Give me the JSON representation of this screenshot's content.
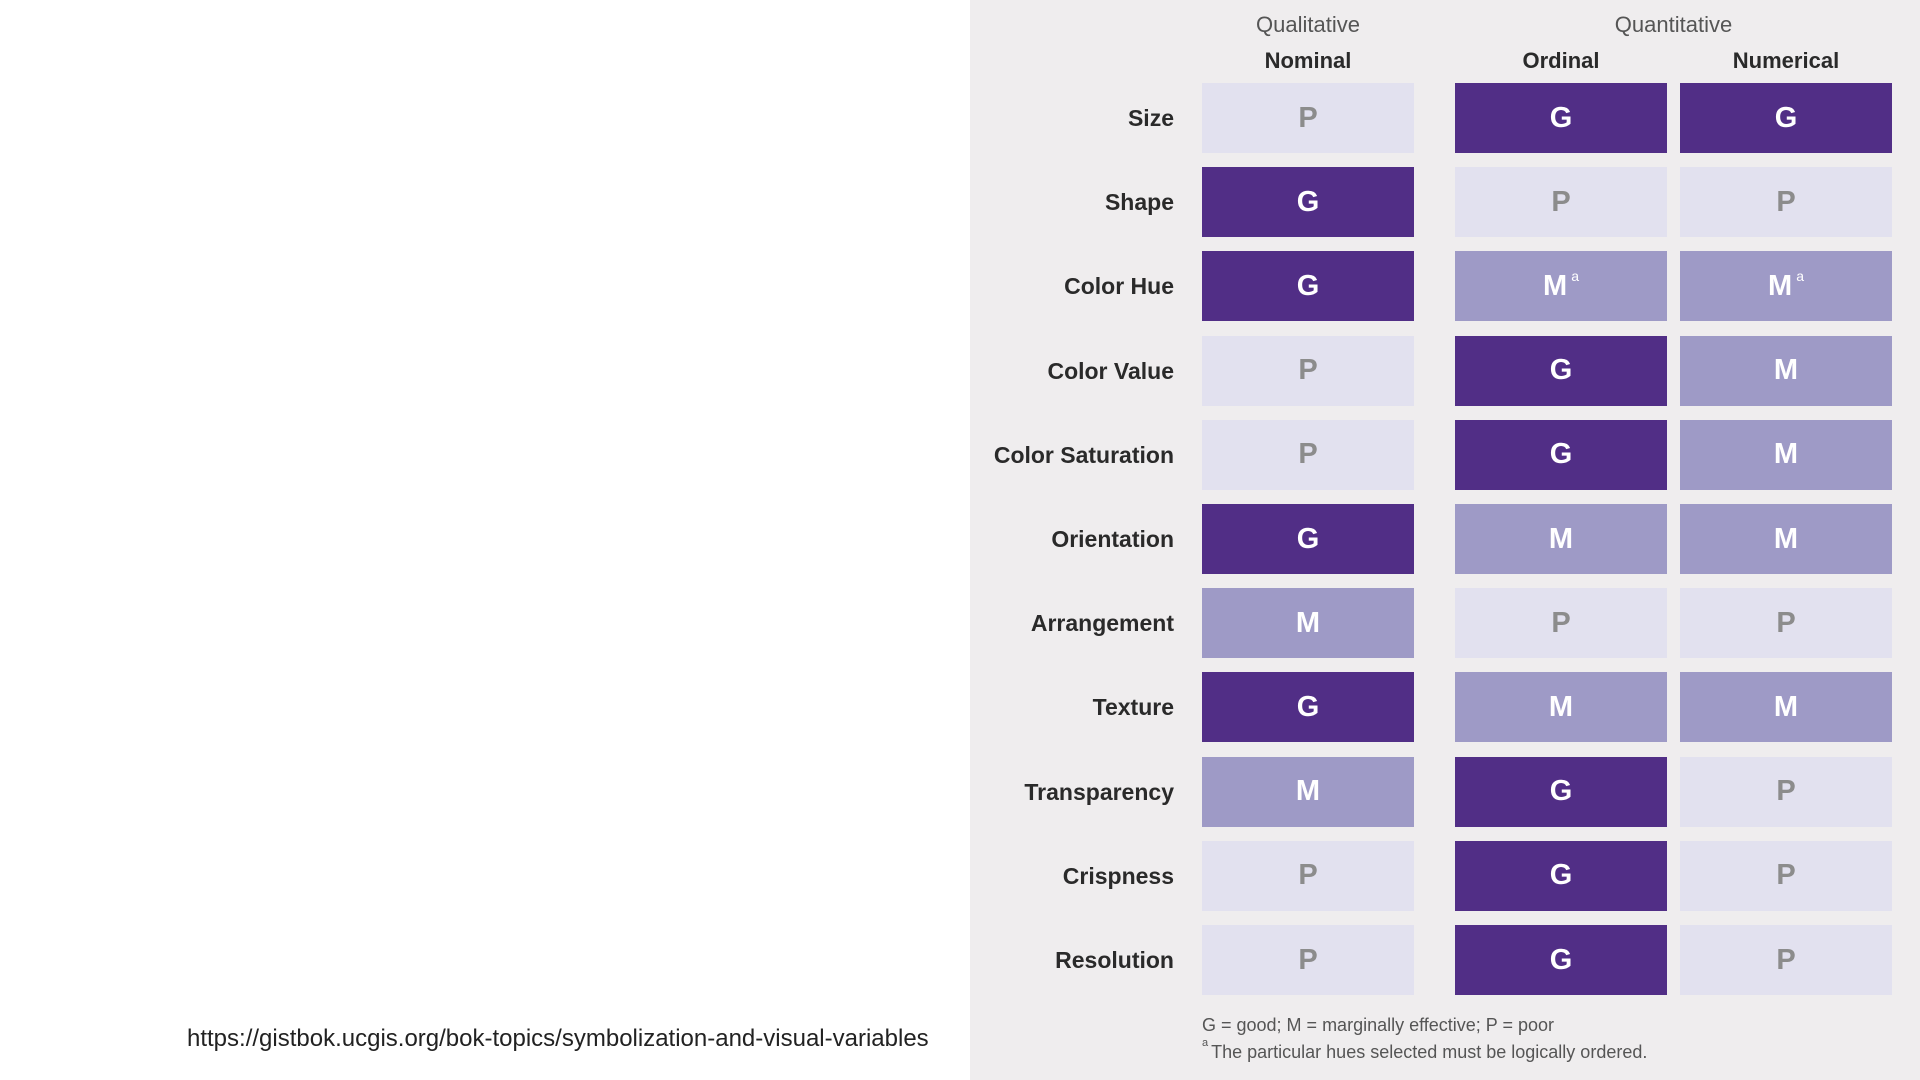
{
  "chart_data": {
    "type": "table",
    "groups": [
      {
        "label": "Qualitative",
        "columns": [
          "Nominal"
        ]
      },
      {
        "label": "Quantitative",
        "columns": [
          "Ordinal",
          "Numerical"
        ]
      }
    ],
    "columns": [
      "Nominal",
      "Ordinal",
      "Numerical"
    ],
    "rows": [
      {
        "label": "Size",
        "values": [
          "P",
          "G",
          "G"
        ],
        "notes": [
          "",
          "",
          ""
        ]
      },
      {
        "label": "Shape",
        "values": [
          "G",
          "P",
          "P"
        ],
        "notes": [
          "",
          "",
          ""
        ]
      },
      {
        "label": "Color Hue",
        "values": [
          "G",
          "M",
          "M"
        ],
        "notes": [
          "",
          "a",
          "a"
        ]
      },
      {
        "label": "Color Value",
        "values": [
          "P",
          "G",
          "M"
        ],
        "notes": [
          "",
          "",
          ""
        ]
      },
      {
        "label": "Color Saturation",
        "values": [
          "P",
          "G",
          "M"
        ],
        "notes": [
          "",
          "",
          ""
        ]
      },
      {
        "label": "Orientation",
        "values": [
          "G",
          "M",
          "M"
        ],
        "notes": [
          "",
          "",
          ""
        ]
      },
      {
        "label": "Arrangement",
        "values": [
          "M",
          "P",
          "P"
        ],
        "notes": [
          "",
          "",
          ""
        ]
      },
      {
        "label": "Texture",
        "values": [
          "G",
          "M",
          "M"
        ],
        "notes": [
          "",
          "",
          ""
        ]
      },
      {
        "label": "Transparency",
        "values": [
          "M",
          "G",
          "P"
        ],
        "notes": [
          "",
          "",
          ""
        ]
      },
      {
        "label": "Crispness",
        "values": [
          "P",
          "G",
          "P"
        ],
        "notes": [
          "",
          "",
          ""
        ]
      },
      {
        "label": "Resolution",
        "values": [
          "P",
          "G",
          "P"
        ],
        "notes": [
          "",
          "",
          ""
        ]
      }
    ],
    "colors": {
      "G": "#512e86",
      "M": "#9e9ac6",
      "P": "#e2e1ef"
    },
    "legend": "G = good; M = marginally effective; P = poor",
    "footnote_marker": "a",
    "footnote": "The particular hues selected must be logically ordered."
  },
  "source_url": "https://gistbok.ucgis.org/bok-topics/symbolization-and-visual-variables"
}
